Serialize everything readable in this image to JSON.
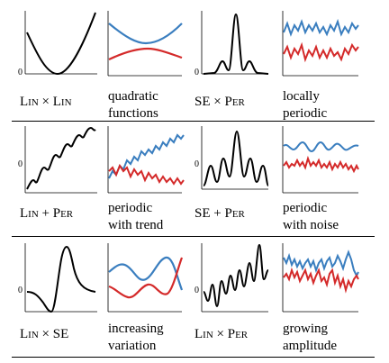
{
  "colors": {
    "kernel_curve": "#000000",
    "sample_blue": "#3a7ebf",
    "sample_red": "#d42a2a",
    "axis": "#000000"
  },
  "zero_label": "0",
  "rows": [
    {
      "kernels": [
        {
          "left": "Lin",
          "op": "×",
          "right": "Lin"
        },
        {
          "left": "SE",
          "op": "×",
          "right": "Per"
        }
      ],
      "descriptions": [
        {
          "line1": "quadratic",
          "line2": "functions"
        },
        {
          "line1": "locally",
          "line2": "periodic"
        }
      ]
    },
    {
      "kernels": [
        {
          "left": "Lin",
          "op": "+",
          "right": "Per"
        },
        {
          "left": "SE",
          "op": "+",
          "right": "Per"
        }
      ],
      "descriptions": [
        {
          "line1": "periodic",
          "line2": "with trend"
        },
        {
          "line1": "periodic",
          "line2": "with noise"
        }
      ]
    },
    {
      "kernels": [
        {
          "left": "Lin",
          "op": "×",
          "right": "SE"
        },
        {
          "left": "Lin",
          "op": "×",
          "right": "Per"
        }
      ],
      "descriptions": [
        {
          "line1": "increasing",
          "line2": "variation"
        },
        {
          "line1": "growing",
          "line2": "amplitude"
        }
      ]
    }
  ]
}
